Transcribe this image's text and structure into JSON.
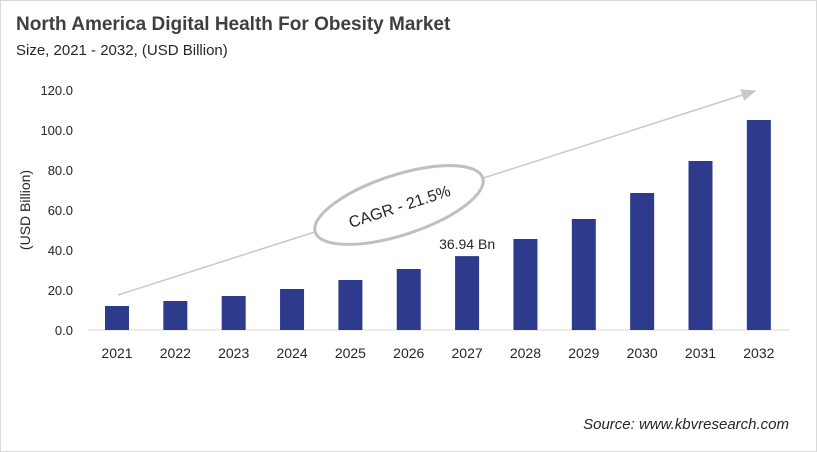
{
  "title": "North America Digital Health For Obesity Market",
  "subtitle": "Size, 2021 - 2032, (USD Billion)",
  "source": "Source: www.kbvresearch.com",
  "chart_data": {
    "type": "bar",
    "title": "North America Digital Health For Obesity Market",
    "subtitle": "Size, 2021 - 2032, (USD Billion)",
    "xlabel": "",
    "ylabel": "(USD Billion)",
    "categories": [
      "2021",
      "2022",
      "2023",
      "2024",
      "2025",
      "2026",
      "2027",
      "2028",
      "2029",
      "2030",
      "2031",
      "2032"
    ],
    "values": [
      12.0,
      14.5,
      17.0,
      20.5,
      25.0,
      30.5,
      36.94,
      45.5,
      55.5,
      68.5,
      84.5,
      105.0
    ],
    "ylim": [
      0,
      120
    ],
    "yticks": [
      "0.0",
      "20.0",
      "40.0",
      "60.0",
      "80.0",
      "100.0",
      "120.0"
    ],
    "grid": false,
    "data_label": {
      "category": "2027",
      "text": "36.94 Bn"
    },
    "annotation": "CAGR - 21.5%",
    "bar_color": "#2e3a8c"
  }
}
